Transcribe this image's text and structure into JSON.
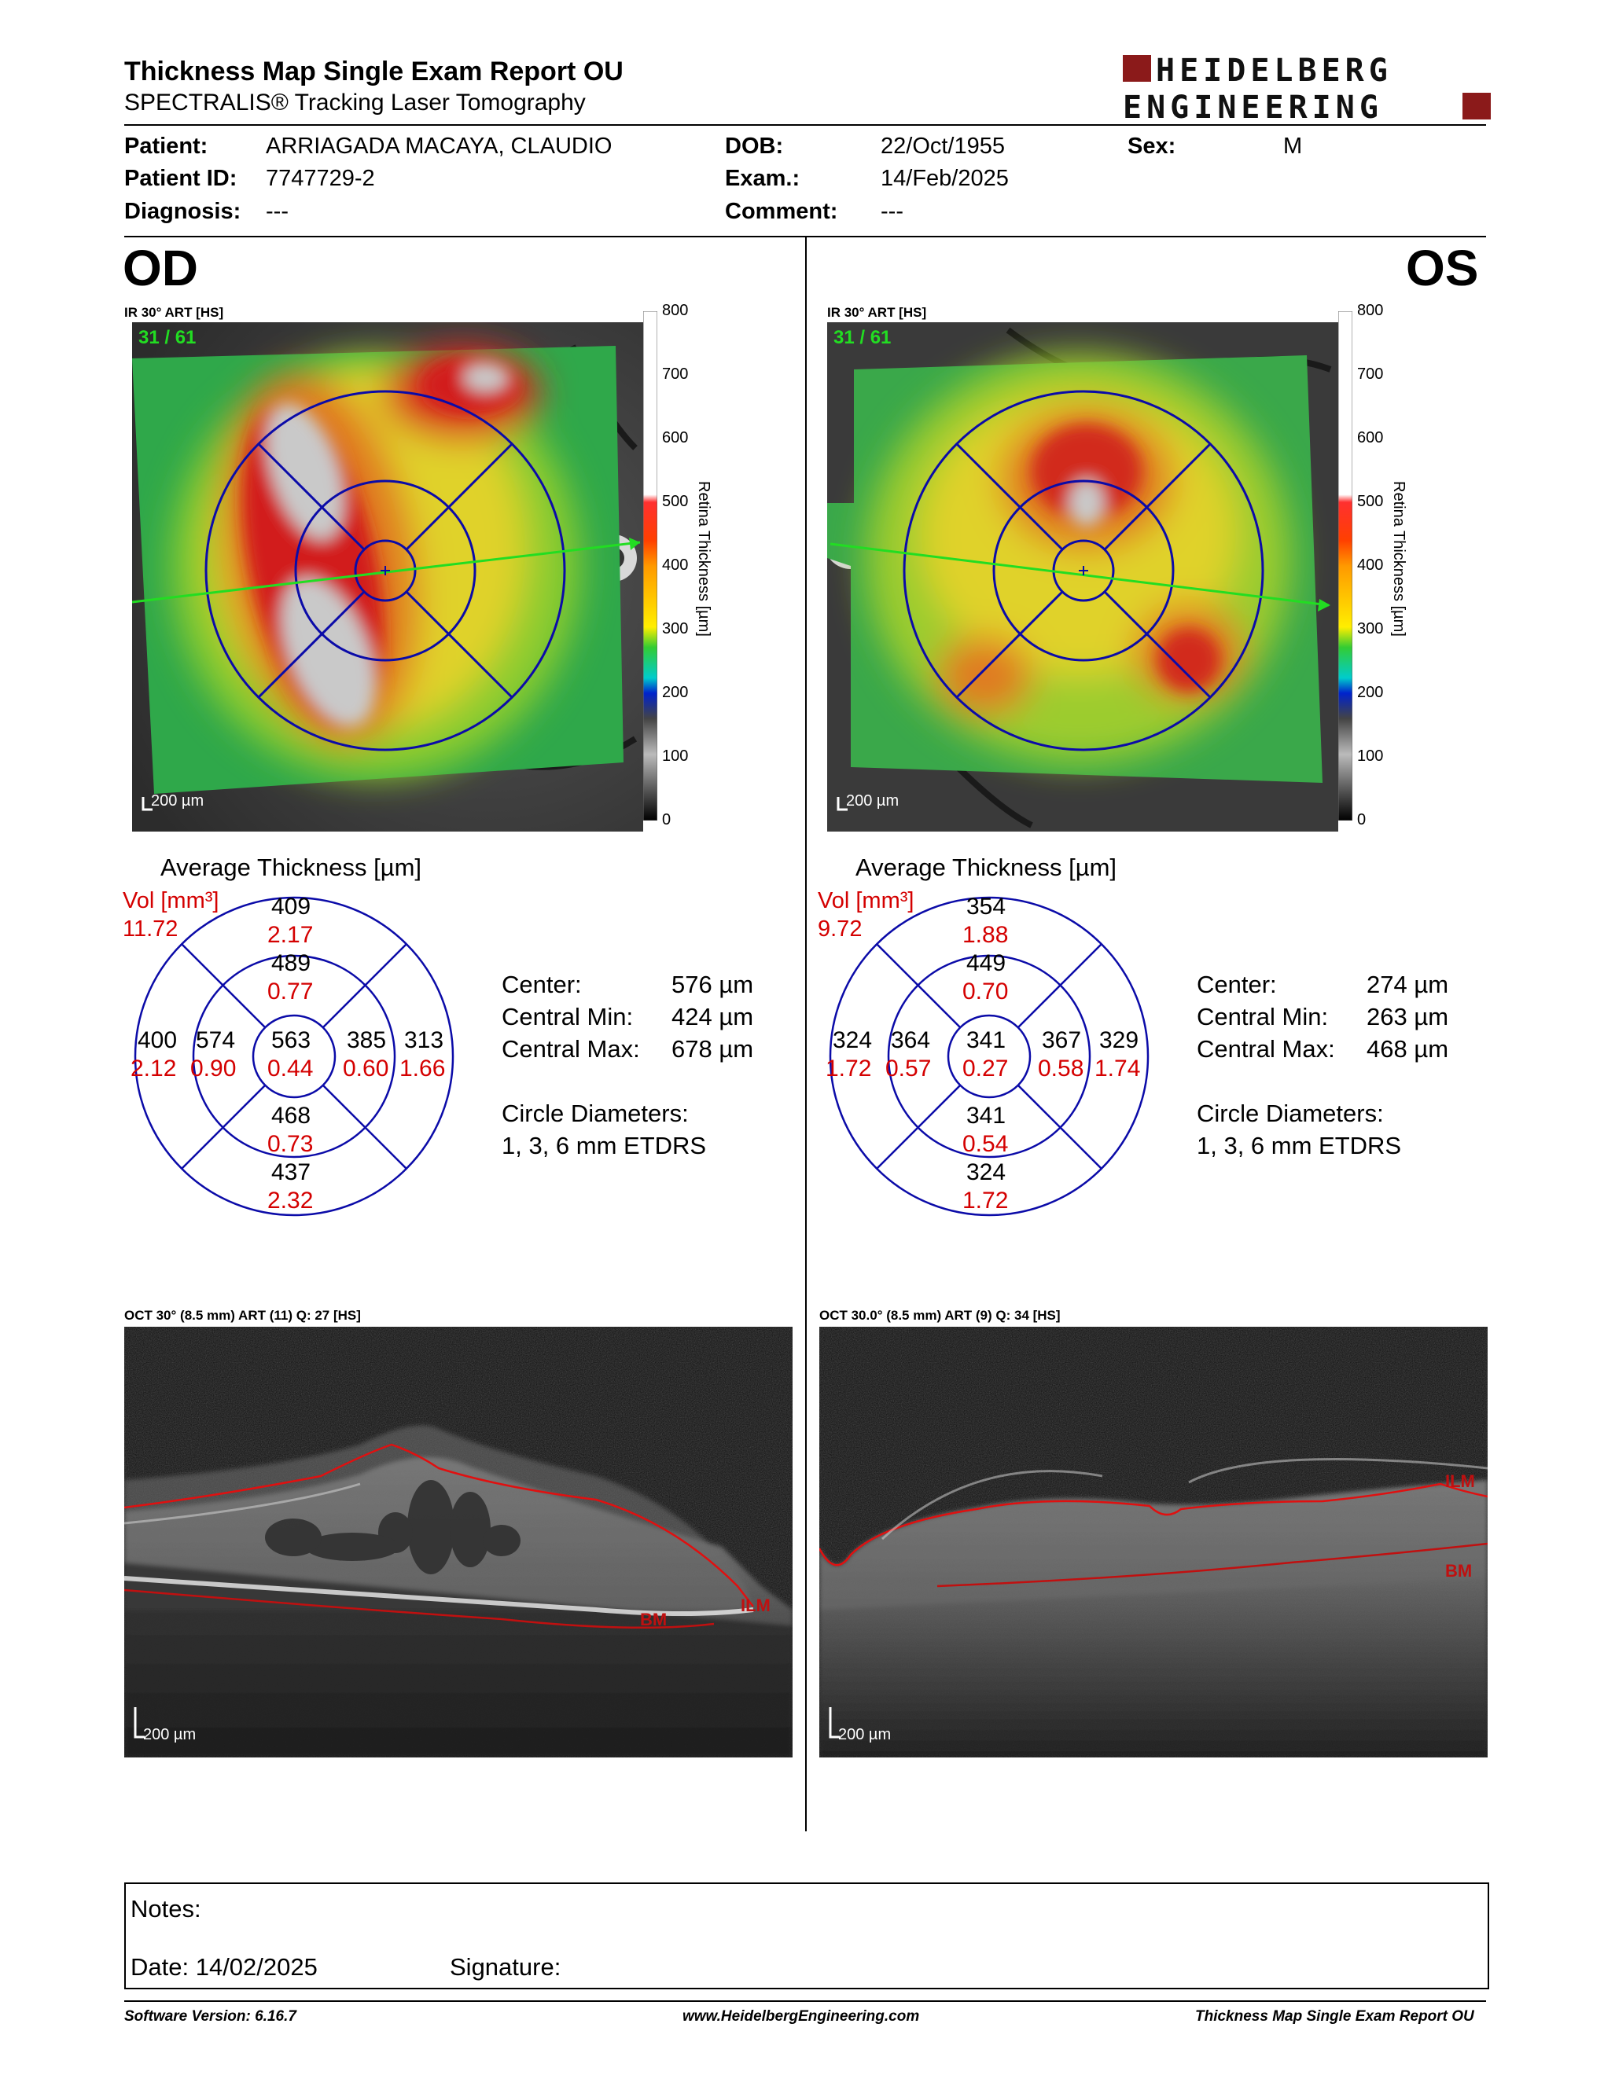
{
  "header": {
    "title": "Thickness Map Single Exam Report OU",
    "subtitle": "SPECTRALIS® Tracking Laser Tomography",
    "logo_line1": "HEIDELBERG",
    "logo_line2": "ENGINEERING"
  },
  "patient": {
    "patient_label": "Patient:",
    "patient_value": "ARRIAGADA MACAYA, CLAUDIO",
    "id_label": "Patient ID:",
    "id_value": "7747729-2",
    "diag_label": "Diagnosis:",
    "diag_value": "---",
    "dob_label": "DOB:",
    "dob_value": "22/Oct/1955",
    "exam_label": "Exam.:",
    "exam_value": "14/Feb/2025",
    "comment_label": "Comment:",
    "comment_value": "---",
    "sex_label": "Sex:",
    "sex_value": "M"
  },
  "od": {
    "eye": "OD",
    "map_label": "IR 30° ART [HS]",
    "frame": "31 / 61",
    "scale": "200 µm",
    "avg_title": "Average Thickness [µm]",
    "vol_label": "Vol [mm³]",
    "vol_total": "11.72",
    "sectors": {
      "center": {
        "t": "563",
        "v": "0.44"
      },
      "inner_sup": {
        "t": "489",
        "v": "0.77"
      },
      "inner_inf": {
        "t": "468",
        "v": "0.73"
      },
      "inner_left": {
        "t": "574",
        "v": "0.90"
      },
      "inner_right": {
        "t": "385",
        "v": "0.60"
      },
      "outer_sup": {
        "t": "409",
        "v": "2.17"
      },
      "outer_inf": {
        "t": "437",
        "v": "2.32"
      },
      "outer_left": {
        "t": "400",
        "v": "2.12"
      },
      "outer_right": {
        "t": "313",
        "v": "1.66"
      }
    },
    "stats": {
      "center_label": "Center:",
      "center_value": "576 µm",
      "min_label": "Central Min:",
      "min_value": "424 µm",
      "max_label": "Central Max:",
      "max_value": "678 µm",
      "circle_label": "Circle Diameters:",
      "circle_value": "1, 3, 6 mm ETDRS"
    },
    "oct_label": "OCT 30° (8.5 mm) ART (11) Q: 27 [HS]",
    "oct_scale": "200 µm",
    "ilm": "ILM",
    "bm": "BM"
  },
  "os": {
    "eye": "OS",
    "map_label": "IR 30° ART [HS]",
    "frame": "31 / 61",
    "scale": "200 µm",
    "avg_title": "Average Thickness [µm]",
    "vol_label": "Vol [mm³]",
    "vol_total": "9.72",
    "sectors": {
      "center": {
        "t": "341",
        "v": "0.27"
      },
      "inner_sup": {
        "t": "449",
        "v": "0.70"
      },
      "inner_inf": {
        "t": "341",
        "v": "0.54"
      },
      "inner_left": {
        "t": "364",
        "v": "0.57"
      },
      "inner_right": {
        "t": "367",
        "v": "0.58"
      },
      "outer_sup": {
        "t": "354",
        "v": "1.88"
      },
      "outer_inf": {
        "t": "324",
        "v": "1.72"
      },
      "outer_left": {
        "t": "324",
        "v": "1.72"
      },
      "outer_right": {
        "t": "329",
        "v": "1.74"
      }
    },
    "stats": {
      "center_label": "Center:",
      "center_value": "274 µm",
      "min_label": "Central Min:",
      "min_value": "263 µm",
      "max_label": "Central Max:",
      "max_value": "468 µm",
      "circle_label": "Circle Diameters:",
      "circle_value": "1, 3, 6 mm ETDRS"
    },
    "oct_label": "OCT 30.0° (8.5 mm) ART (9) Q: 34 [HS]",
    "oct_scale": "200 µm",
    "ilm": "ILM",
    "bm": "BM"
  },
  "colorbar": {
    "ticks": [
      "800",
      "700",
      "600",
      "500",
      "400",
      "300",
      "200",
      "100",
      "0"
    ],
    "title": "Retina Thickness [µm]"
  },
  "notes": {
    "notes_label": "Notes:",
    "date_label": "Date: 14/02/2025",
    "signature_label": "Signature:"
  },
  "footer": {
    "software": "Software Version: 6.16.7",
    "website": "www.HeidelbergEngineering.com",
    "report": "Thickness Map Single Exam Report OU"
  },
  "colors": {
    "volume_red": "#d40000",
    "etdrs_blue": "#0b0ba8",
    "logo_red": "#8b1a1a",
    "frame_green": "#22dd22"
  }
}
